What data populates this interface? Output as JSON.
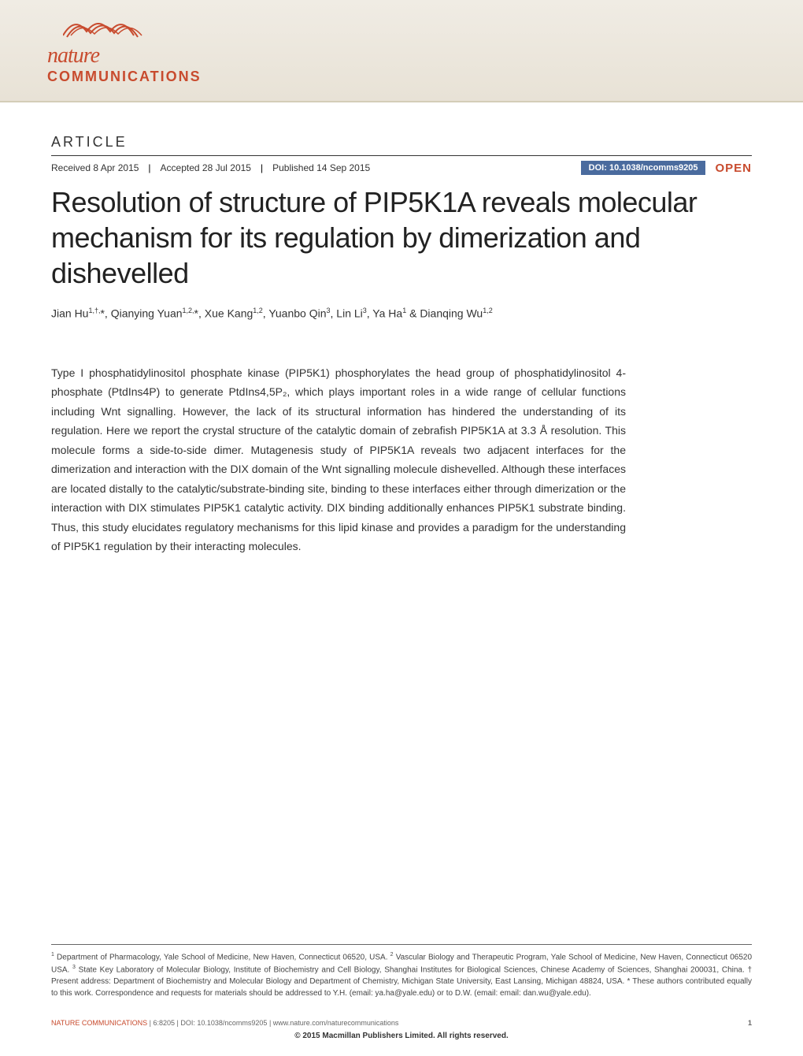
{
  "journal": {
    "logo_nature": "nature",
    "logo_comm": "COMMUNICATIONS",
    "wave_color1": "#c84b2e",
    "wave_color2": "#c84b2e"
  },
  "article": {
    "label": "ARTICLE",
    "received": "Received 8 Apr 2015",
    "accepted": "Accepted 28 Jul 2015",
    "published": "Published 14 Sep 2015",
    "doi": "DOI: 10.1038/ncomms9205",
    "open_label": "OPEN",
    "title": "Resolution of structure of PIP5K1A reveals molecular mechanism for its regulation by dimerization and dishevelled",
    "authors_html": "Jian Hu<sup>1,†,</sup>*, Qianying Yuan<sup>1,2,</sup>*, Xue Kang<sup>1,2</sup>, Yuanbo Qin<sup>3</sup>, Lin Li<sup>3</sup>, Ya Ha<sup>1</sup> & Dianqing Wu<sup>1,2</sup>",
    "abstract": "Type I phosphatidylinositol phosphate kinase (PIP5K1) phosphorylates the head group of phosphatidylinositol 4-phosphate (PtdIns4P) to generate PtdIns4,5P₂, which plays important roles in a wide range of cellular functions including Wnt signalling. However, the lack of its structural information has hindered the understanding of its regulation. Here we report the crystal structure of the catalytic domain of zebrafish PIP5K1A at 3.3 Å resolution. This molecule forms a side-to-side dimer. Mutagenesis study of PIP5K1A reveals two adjacent interfaces for the dimerization and interaction with the DIX domain of the Wnt signalling molecule dishevelled. Although these interfaces are located distally to the catalytic/substrate-binding site, binding to these interfaces either through dimerization or the interaction with DIX stimulates PIP5K1 catalytic activity. DIX binding additionally enhances PIP5K1 substrate binding. Thus, this study elucidates regulatory mechanisms for this lipid kinase and provides a paradigm for the understanding of PIP5K1 regulation by their interacting molecules."
  },
  "footer": {
    "affiliations_html": "<sup>1</sup> Department of Pharmacology, Yale School of Medicine, New Haven, Connecticut 06520, USA. <sup>2</sup> Vascular Biology and Therapeutic Program, Yale School of Medicine, New Haven, Connecticut 06520 USA. <sup>3</sup> State Key Laboratory of Molecular Biology, Institute of Biochemistry and Cell Biology, Shanghai Institutes for Biological Sciences, Chinese Academy of Sciences, Shanghai 200031, China. † Present address: Department of Biochemistry and Molecular Biology and Department of Chemistry, Michigan State University, East Lansing, Michigan 48824, USA. * These authors contributed equally to this work. Correspondence and requests for materials should be addressed to Y.H. (email: ya.ha@yale.edu) or to D.W. (email: email: dan.wu@yale.edu).",
    "citation_journal": "NATURE COMMUNICATIONS",
    "citation_details": " | 6:8205 | DOI: 10.1038/ncomms9205 | www.nature.com/naturecommunications",
    "page_number": "1",
    "copyright": "© 2015 Macmillan Publishers Limited. All rights reserved."
  },
  "colors": {
    "accent": "#c84b2e",
    "doi_bg": "#4a6b9e",
    "banner_top": "#f0ece4",
    "banner_bottom": "#e8e2d6"
  }
}
